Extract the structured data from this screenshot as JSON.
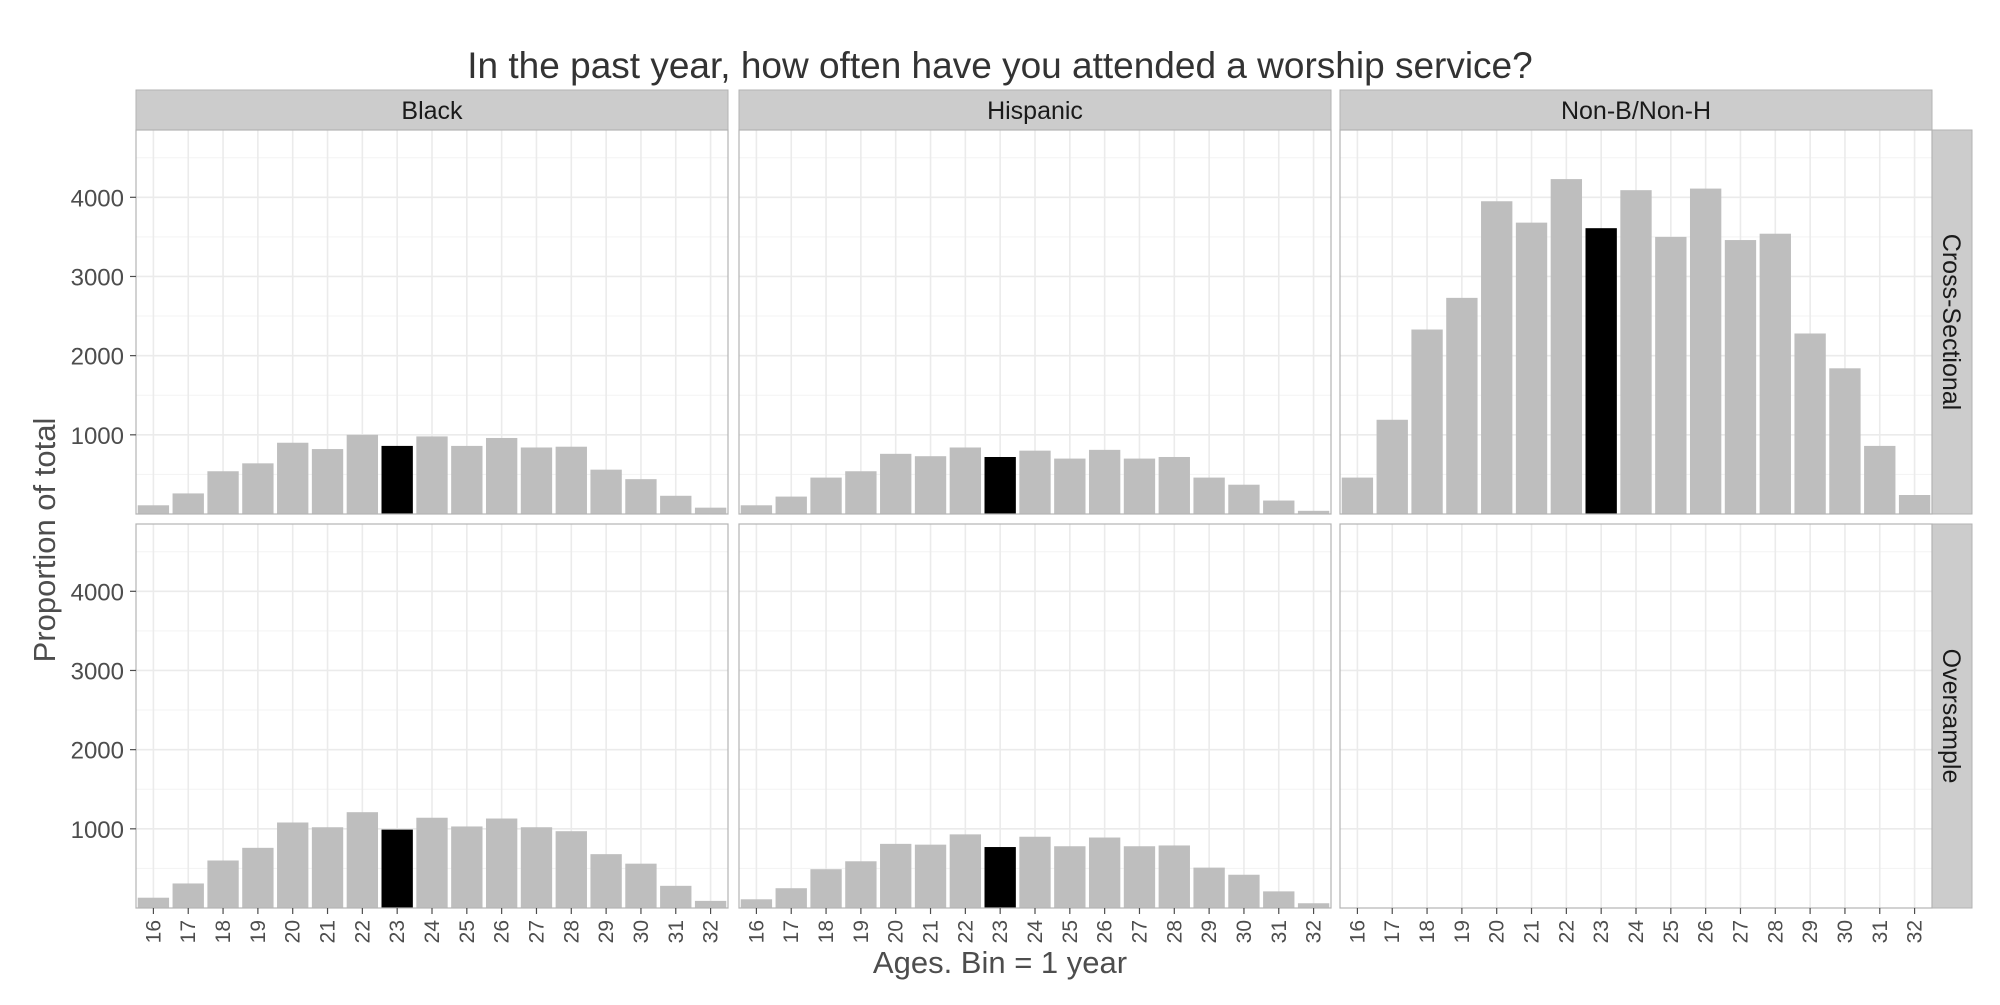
{
  "chart_data": {
    "type": "bar",
    "title": "In the past year, how often have you attended a worship service?",
    "xlabel": "Ages. Bin = 1 year",
    "ylabel": "Proportion of total",
    "facet_columns": [
      "Black",
      "Hispanic",
      "Non-B/Non-H"
    ],
    "facet_rows": [
      "Cross-Sectional",
      "Oversample"
    ],
    "categories": [
      "16",
      "17",
      "18",
      "19",
      "20",
      "21",
      "22",
      "23",
      "24",
      "25",
      "26",
      "27",
      "28",
      "29",
      "30",
      "31",
      "32"
    ],
    "highlight_category": "23",
    "yticks": [
      1000,
      2000,
      3000,
      4000
    ],
    "ylim": [
      0,
      4850
    ],
    "grid": true,
    "colors": {
      "bar": "#bebebe",
      "highlight": "#000000",
      "strip": "#cccccc",
      "panel_border": "#b3b3b3",
      "grid": "#ebebeb",
      "text": "#333333",
      "tick": "#4d4d4d"
    },
    "panels": [
      {
        "row": "Cross-Sectional",
        "column": "Black",
        "values": [
          110,
          260,
          540,
          640,
          900,
          820,
          1000,
          860,
          980,
          860,
          960,
          840,
          850,
          560,
          440,
          230,
          80
        ]
      },
      {
        "row": "Cross-Sectional",
        "column": "Hispanic",
        "values": [
          110,
          220,
          460,
          540,
          760,
          730,
          840,
          720,
          800,
          700,
          810,
          700,
          720,
          460,
          370,
          170,
          40
        ]
      },
      {
        "row": "Cross-Sectional",
        "column": "Non-B/Non-H",
        "values": [
          460,
          1190,
          2330,
          2730,
          3950,
          3680,
          4230,
          3610,
          4090,
          3500,
          4110,
          3460,
          3540,
          2280,
          1840,
          860,
          240
        ]
      },
      {
        "row": "Oversample",
        "column": "Black",
        "values": [
          130,
          310,
          600,
          760,
          1080,
          1020,
          1210,
          990,
          1140,
          1030,
          1130,
          1020,
          970,
          680,
          560,
          280,
          90
        ]
      },
      {
        "row": "Oversample",
        "column": "Hispanic",
        "values": [
          110,
          250,
          490,
          590,
          810,
          800,
          930,
          770,
          900,
          780,
          890,
          780,
          790,
          510,
          420,
          210,
          60
        ]
      },
      {
        "row": "Oversample",
        "column": "Non-B/Non-H",
        "values": []
      }
    ]
  }
}
